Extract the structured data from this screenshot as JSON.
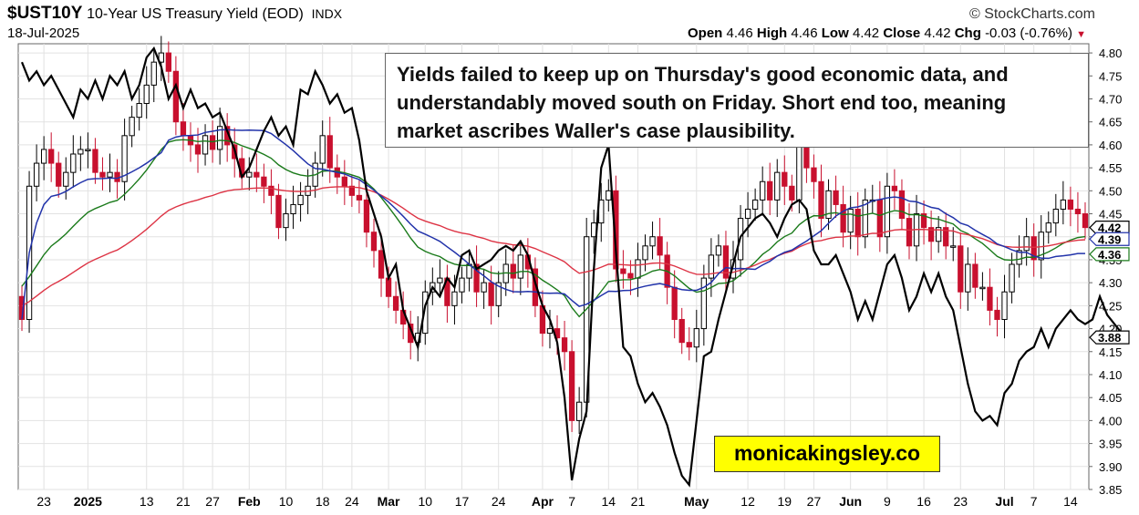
{
  "header": {
    "symbol": "$UST10Y",
    "description": "10-Year US Treasury Yield (EOD)",
    "exchange": "INDX",
    "date": "18-Jul-2025",
    "credit": "© StockCharts.com",
    "open_label": "Open",
    "open": "4.46",
    "high_label": "High",
    "high": "4.46",
    "low_label": "Low",
    "low": "4.42",
    "close_label": "Close",
    "close": "4.42",
    "chg_label": "Chg",
    "chg": "-0.03 (-0.76%)"
  },
  "annotation": "Yields failed to keep up on Thursday's good economic data, and understandably moved south on Friday. Short end too, meaning market ascribes Waller's case plausibility.",
  "watermark": "monicakingsley.co",
  "colors": {
    "up": "#000000",
    "down": "#c8102e",
    "ma_short": "#2233aa",
    "ma_mid": "#dd3344",
    "ma_long": "#1a7a1a",
    "overlay": "#000000"
  },
  "chart_data": {
    "type": "candlestick",
    "ylim": [
      3.85,
      4.82
    ],
    "yticks": [
      4.8,
      4.75,
      4.7,
      4.65,
      4.6,
      4.55,
      4.5,
      4.45,
      4.4,
      4.35,
      4.3,
      4.25,
      4.2,
      4.15,
      4.1,
      4.05,
      4.0,
      3.95,
      3.9,
      3.85
    ],
    "xlabels": [
      {
        "label": "23",
        "index": 3
      },
      {
        "label": "2025",
        "index": 9,
        "bold": true
      },
      {
        "label": "13",
        "index": 17
      },
      {
        "label": "21",
        "index": 22
      },
      {
        "label": "27",
        "index": 26
      },
      {
        "label": "Feb",
        "index": 31,
        "bold": true
      },
      {
        "label": "10",
        "index": 36
      },
      {
        "label": "18",
        "index": 41
      },
      {
        "label": "24",
        "index": 45
      },
      {
        "label": "Mar",
        "index": 50,
        "bold": true
      },
      {
        "label": "10",
        "index": 55
      },
      {
        "label": "17",
        "index": 60
      },
      {
        "label": "24",
        "index": 65
      },
      {
        "label": "Apr",
        "index": 71,
        "bold": true
      },
      {
        "label": "7",
        "index": 75
      },
      {
        "label": "14",
        "index": 80
      },
      {
        "label": "21",
        "index": 84
      },
      {
        "label": "May",
        "index": 92,
        "bold": true
      },
      {
        "label": "12",
        "index": 99
      },
      {
        "label": "19",
        "index": 104
      },
      {
        "label": "27",
        "index": 108
      },
      {
        "label": "Jun",
        "index": 113,
        "bold": true
      },
      {
        "label": "9",
        "index": 118
      },
      {
        "label": "16",
        "index": 123
      },
      {
        "label": "23",
        "index": 128
      },
      {
        "label": "Jul",
        "index": 134,
        "bold": true
      },
      {
        "label": "7",
        "index": 138
      },
      {
        "label": "14",
        "index": 143
      }
    ],
    "close": [
      4.22,
      4.51,
      4.56,
      4.59,
      4.56,
      4.51,
      4.54,
      4.58,
      4.59,
      4.59,
      4.54,
      4.53,
      4.54,
      4.52,
      4.62,
      4.66,
      4.69,
      4.73,
      4.78,
      4.8,
      4.76,
      4.65,
      4.62,
      4.6,
      4.58,
      4.62,
      4.59,
      4.64,
      4.6,
      4.57,
      4.53,
      4.54,
      4.53,
      4.51,
      4.49,
      4.42,
      4.45,
      4.47,
      4.49,
      4.51,
      4.56,
      4.62,
      4.55,
      4.53,
      4.51,
      4.49,
      4.48,
      4.41,
      4.37,
      4.31,
      4.27,
      4.24,
      4.21,
      4.17,
      4.19,
      4.28,
      4.3,
      4.31,
      4.25,
      4.28,
      4.31,
      4.34,
      4.28,
      4.3,
      4.25,
      4.3,
      4.34,
      4.31,
      4.36,
      4.33,
      4.25,
      4.19,
      4.2,
      4.18,
      4.15,
      4.0,
      4.04,
      4.4,
      4.43,
      4.48,
      4.5,
      4.33,
      4.32,
      4.31,
      4.35,
      4.38,
      4.4,
      4.36,
      4.29,
      4.22,
      4.17,
      4.16,
      4.2,
      4.31,
      4.36,
      4.38,
      4.31,
      4.35,
      4.44,
      4.46,
      4.48,
      4.52,
      4.48,
      4.54,
      4.51,
      4.48,
      4.6,
      4.55,
      4.52,
      4.44,
      4.5,
      4.47,
      4.41,
      4.46,
      4.4,
      4.48,
      4.48,
      4.4,
      4.51,
      4.5,
      4.44,
      4.38,
      4.45,
      4.42,
      4.39,
      4.42,
      4.38,
      4.38,
      4.28,
      4.34,
      4.29,
      4.29,
      4.24,
      4.22,
      4.28,
      4.34,
      4.37,
      4.4,
      4.35,
      4.41,
      4.43,
      4.46,
      4.48,
      4.46,
      4.45,
      4.42
    ],
    "overlay_line": [
      4.78,
      4.74,
      4.76,
      4.73,
      4.75,
      4.72,
      4.69,
      4.66,
      4.72,
      4.7,
      4.74,
      4.7,
      4.75,
      4.73,
      4.76,
      4.7,
      4.73,
      4.79,
      4.81,
      4.77,
      4.7,
      4.73,
      4.68,
      4.72,
      4.68,
      4.69,
      4.66,
      4.67,
      4.63,
      4.59,
      4.53,
      4.55,
      4.59,
      4.63,
      4.66,
      4.62,
      4.64,
      4.6,
      4.72,
      4.71,
      4.76,
      4.73,
      4.69,
      4.71,
      4.67,
      4.68,
      4.61,
      4.5,
      4.45,
      4.4,
      4.31,
      4.34,
      4.24,
      4.2,
      4.16,
      4.25,
      4.29,
      4.27,
      4.31,
      4.29,
      4.36,
      4.37,
      4.33,
      4.34,
      4.35,
      4.37,
      4.38,
      4.37,
      4.39,
      4.36,
      4.3,
      4.25,
      4.22,
      4.17,
      4.05,
      3.87,
      3.96,
      4.02,
      4.33,
      4.55,
      4.6,
      4.37,
      4.16,
      4.14,
      4.08,
      4.04,
      4.06,
      4.03,
      3.99,
      3.93,
      3.88,
      3.86,
      4.0,
      4.14,
      4.15,
      4.22,
      4.28,
      4.34,
      4.4,
      4.42,
      4.44,
      4.45,
      4.43,
      4.4,
      4.44,
      4.47,
      4.48,
      4.46,
      4.37,
      4.34,
      4.34,
      4.36,
      4.32,
      4.28,
      4.22,
      4.26,
      4.22,
      4.28,
      4.34,
      4.36,
      4.31,
      4.24,
      4.27,
      4.32,
      4.28,
      4.32,
      4.27,
      4.24,
      4.16,
      4.08,
      4.02,
      4.0,
      4.01,
      3.99,
      4.06,
      4.08,
      4.13,
      4.15,
      4.16,
      4.2,
      4.16,
      4.2,
      4.22,
      4.24,
      4.22,
      4.21,
      4.22,
      4.27,
      4.23,
      4.21,
      4.19
    ],
    "last_values": {
      "close": "4.42",
      "ma_short": "4.39",
      "ma_long": "4.36",
      "overlay": "3.88"
    }
  }
}
